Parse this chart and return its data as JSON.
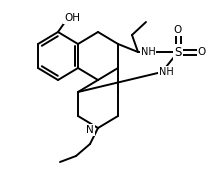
{
  "bg": "#ffffff",
  "lc": "#000000",
  "lw": 1.4,
  "atom_labels": [
    {
      "text": "OH",
      "ix": 72,
      "iy": 18,
      "fs": 7.5,
      "ha": "center",
      "va": "center"
    },
    {
      "text": "NH",
      "ix": 148,
      "iy": 52,
      "fs": 7.0,
      "ha": "center",
      "va": "center"
    },
    {
      "text": "S",
      "ix": 178,
      "iy": 52,
      "fs": 8.5,
      "ha": "center",
      "va": "center"
    },
    {
      "text": "O",
      "ix": 178,
      "iy": 30,
      "fs": 7.5,
      "ha": "center",
      "va": "center"
    },
    {
      "text": "O",
      "ix": 202,
      "iy": 52,
      "fs": 7.5,
      "ha": "center",
      "va": "center"
    },
    {
      "text": "NH",
      "ix": 166,
      "iy": 72,
      "fs": 7.0,
      "ha": "center",
      "va": "center"
    },
    {
      "text": "N",
      "ix": 90,
      "iy": 130,
      "fs": 7.5,
      "ha": "center",
      "va": "center"
    }
  ]
}
